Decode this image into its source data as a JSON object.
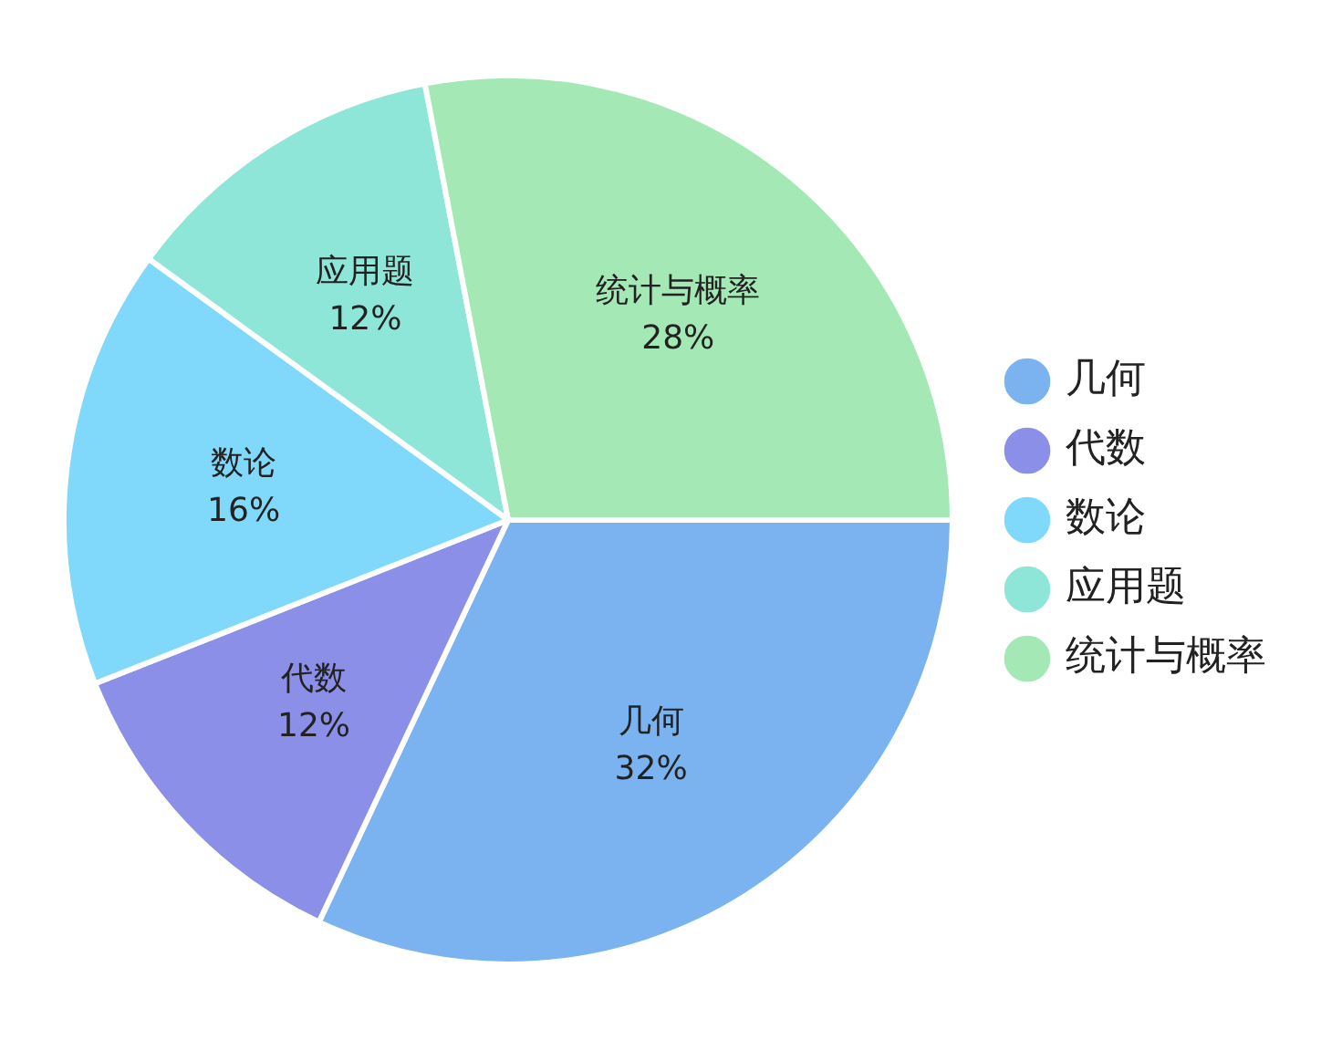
{
  "chart_data": {
    "type": "pie",
    "categories": [
      "几何",
      "代数",
      "数论",
      "应用题",
      "统计与概率"
    ],
    "values": [
      32,
      12,
      16,
      12,
      28
    ],
    "value_labels": [
      "32%",
      "12%",
      "16%",
      "12%",
      "28%"
    ],
    "colors": [
      "#7ab3ef",
      "#8b8fe8",
      "#80d8fb",
      "#8ee6d8",
      "#a3e8b5"
    ],
    "legend": "right"
  }
}
